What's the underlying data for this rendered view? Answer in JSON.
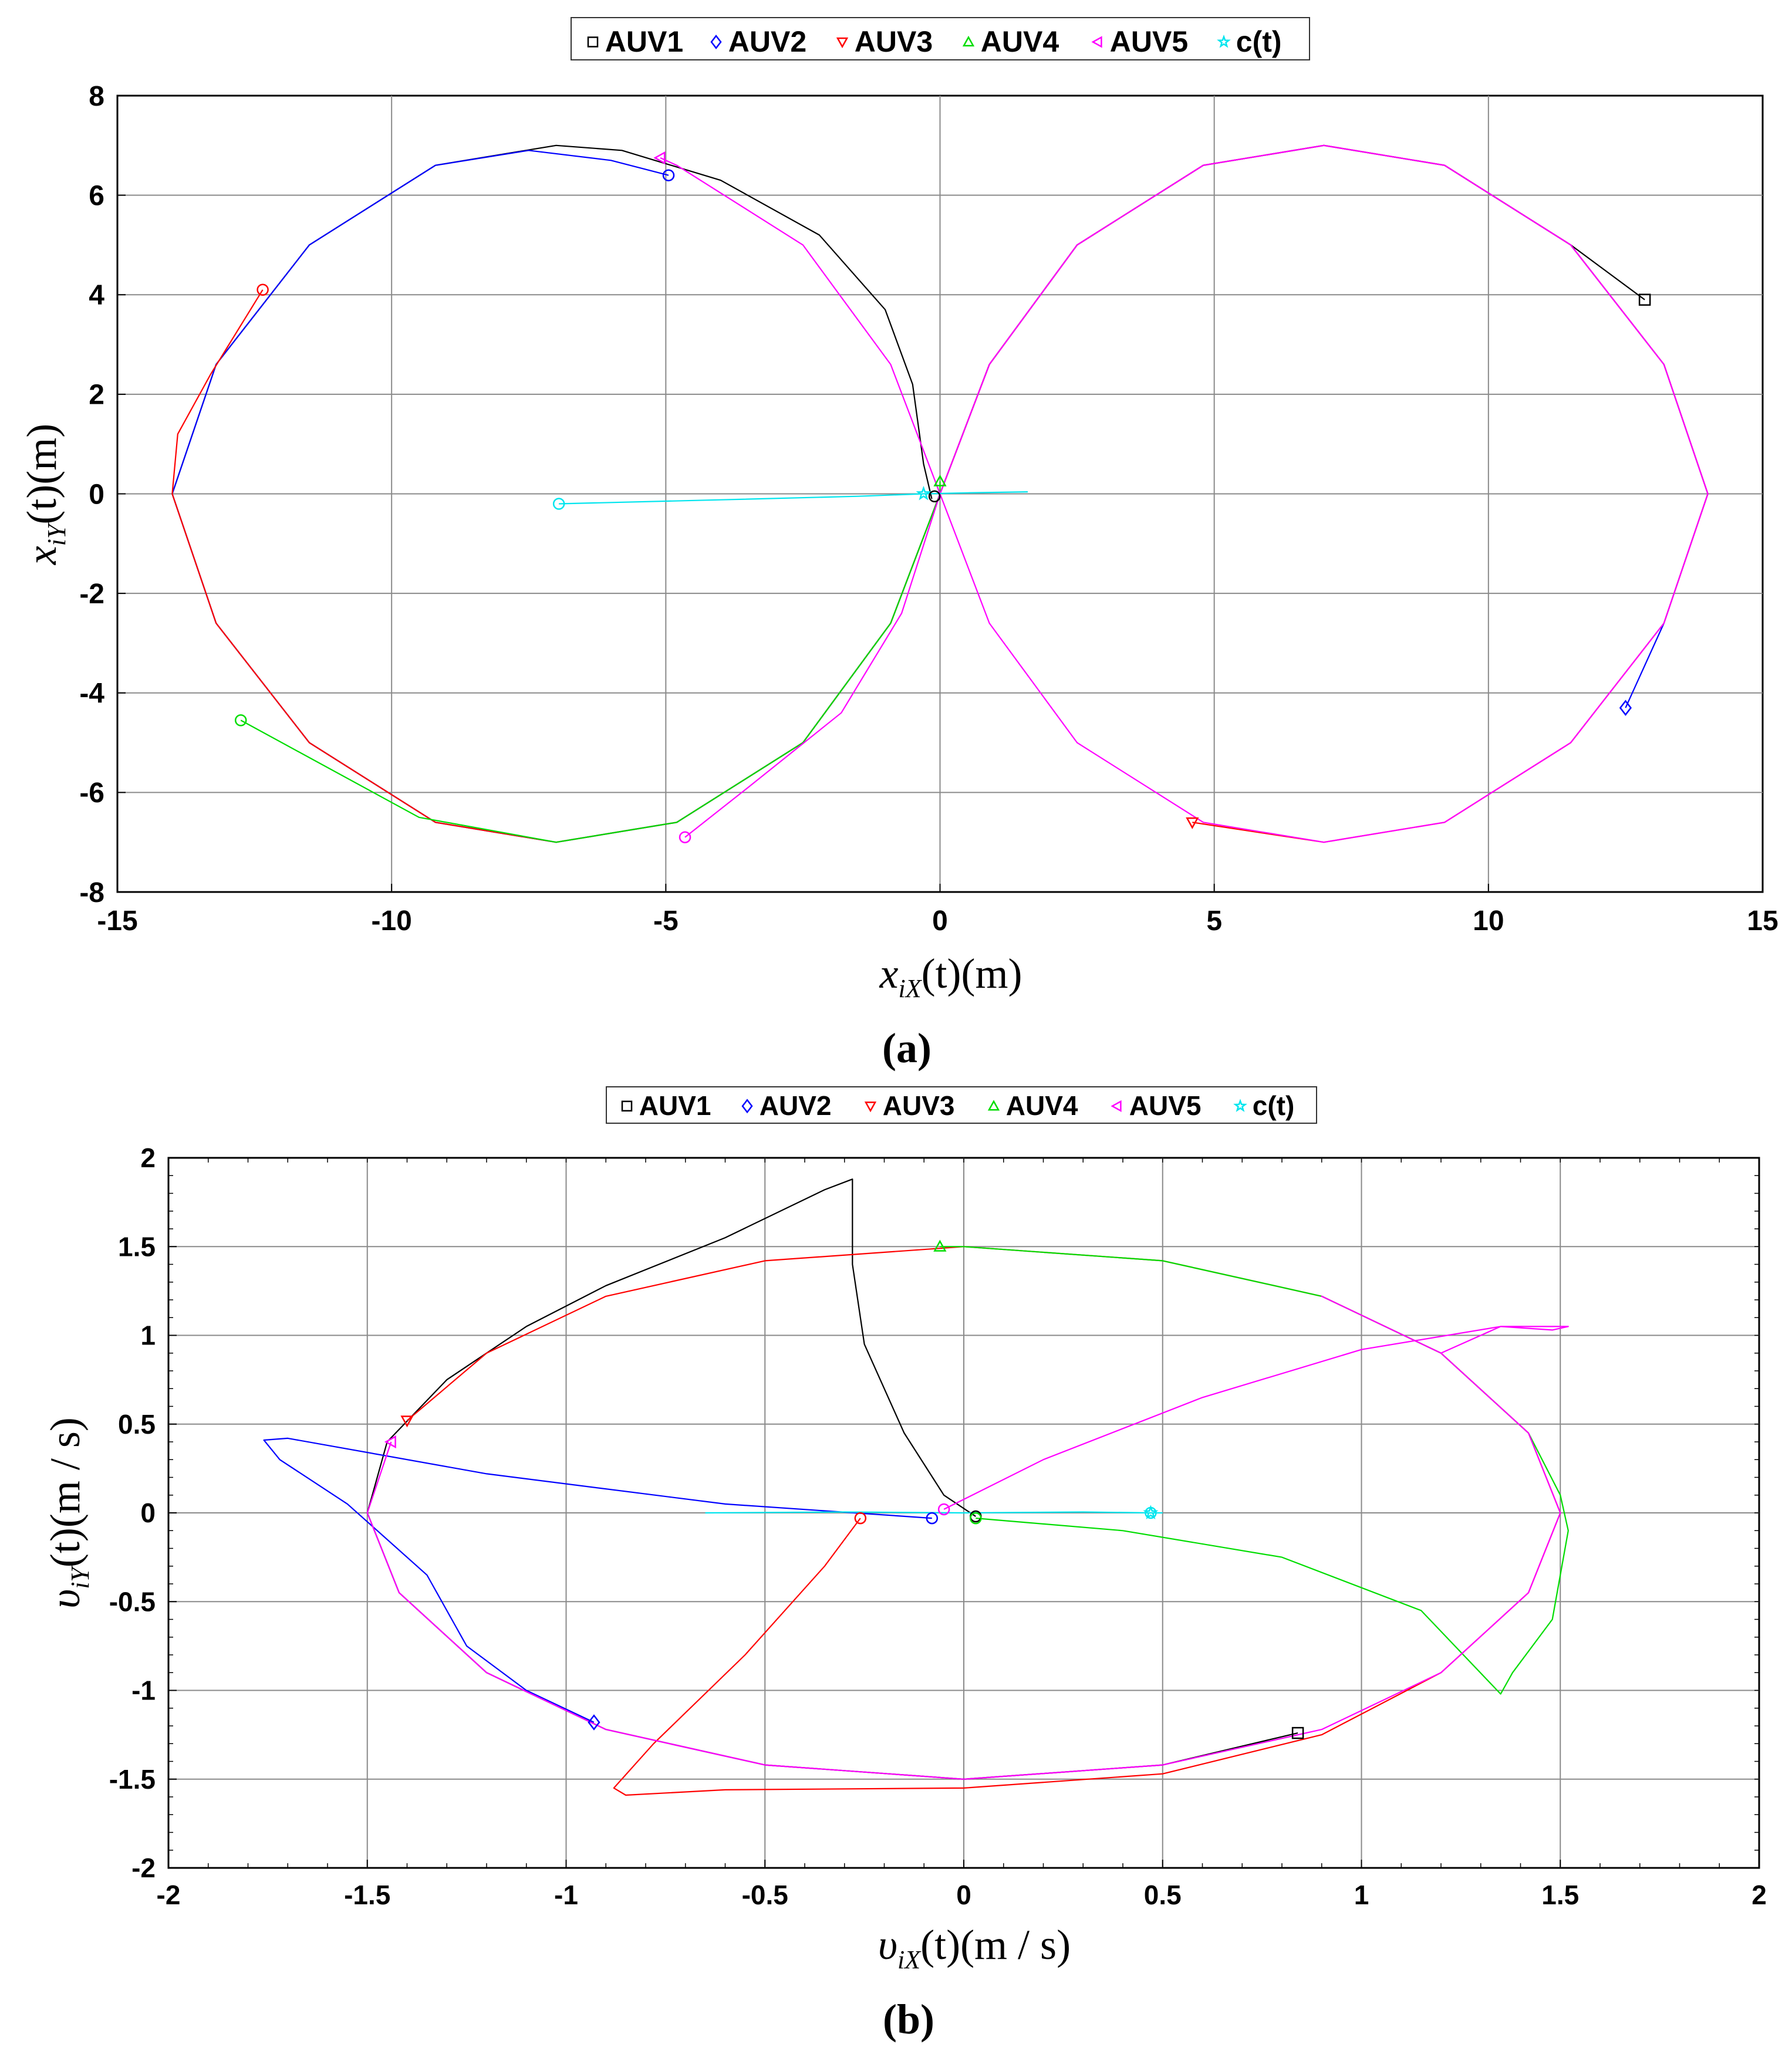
{
  "chart_data": [
    {
      "type": "line",
      "panel_label": "(a)",
      "xlabel": "x_iX(t)(m)",
      "ylabel": "x_iY(t)(m)",
      "xlim": [
        -15,
        15
      ],
      "ylim": [
        -8,
        8
      ],
      "xticks": [
        "-15",
        "-10",
        "-5",
        "0",
        "5",
        "10",
        "15"
      ],
      "yticks": [
        "-8",
        "-6",
        "-4",
        "-2",
        "0",
        "2",
        "4",
        "6",
        "8"
      ],
      "grid": true,
      "legend_position": "top-outside",
      "series": [
        {
          "name": "AUV1",
          "color": "#000000",
          "marker": "square",
          "points": [
            [
              -0.15,
              -0.1
            ],
            [
              -0.3,
              0.6
            ],
            [
              -0.5,
              2.2
            ],
            [
              -1.0,
              3.7
            ],
            [
              -2.2,
              5.2
            ],
            [
              -4.0,
              6.3
            ],
            [
              -5.8,
              6.9
            ],
            [
              -7.0,
              7.0
            ],
            [
              -9.2,
              6.6
            ],
            [
              -11.5,
              5.0
            ],
            [
              -13.2,
              2.6
            ],
            [
              -14.0,
              0
            ],
            [
              -13.2,
              -2.6
            ],
            [
              -11.5,
              -5.0
            ],
            [
              -9.2,
              -6.6
            ],
            [
              -7.0,
              -7.0
            ],
            [
              -4.8,
              -6.6
            ],
            [
              -2.5,
              -5.0
            ],
            [
              -0.9,
              -2.6
            ],
            [
              0,
              0
            ],
            [
              0.9,
              2.6
            ],
            [
              2.5,
              5.0
            ],
            [
              4.8,
              6.6
            ],
            [
              7.0,
              7.0
            ],
            [
              9.2,
              6.6
            ],
            [
              11.5,
              5.0
            ],
            [
              12.85,
              3.9
            ]
          ],
          "end": [
            12.85,
            3.9
          ]
        },
        {
          "name": "AUV2",
          "color": "#0000ff",
          "marker": "diamond",
          "points": [
            [
              -4.95,
              6.4
            ],
            [
              -6.0,
              6.7
            ],
            [
              -7.5,
              6.9
            ],
            [
              -9.2,
              6.6
            ],
            [
              -11.5,
              5.0
            ],
            [
              -13.2,
              2.6
            ],
            [
              -14.0,
              0
            ],
            [
              -13.2,
              -2.6
            ],
            [
              -11.5,
              -5.0
            ],
            [
              -9.2,
              -6.6
            ],
            [
              -7.0,
              -7.0
            ],
            [
              -4.8,
              -6.6
            ],
            [
              -2.5,
              -5.0
            ],
            [
              -0.9,
              -2.6
            ],
            [
              0,
              0
            ],
            [
              0.9,
              2.6
            ],
            [
              2.5,
              5.0
            ],
            [
              4.8,
              6.6
            ],
            [
              7.0,
              7.0
            ],
            [
              9.2,
              6.6
            ],
            [
              11.5,
              5.0
            ],
            [
              13.2,
              2.6
            ],
            [
              14.0,
              0
            ],
            [
              13.2,
              -2.6
            ],
            [
              12.5,
              -4.3
            ]
          ],
          "end": [
            12.5,
            -4.3
          ]
        },
        {
          "name": "AUV3",
          "color": "#ff0000",
          "marker": "triangle-down",
          "points": [
            [
              -12.35,
              4.1
            ],
            [
              -13.3,
              2.4
            ],
            [
              -13.9,
              1.2
            ],
            [
              -14.0,
              0
            ],
            [
              -13.2,
              -2.6
            ],
            [
              -11.5,
              -5.0
            ],
            [
              -9.2,
              -6.6
            ],
            [
              -7.0,
              -7.0
            ],
            [
              -4.8,
              -6.6
            ],
            [
              -2.5,
              -5.0
            ],
            [
              -0.9,
              -2.6
            ],
            [
              0,
              0
            ],
            [
              0.9,
              2.6
            ],
            [
              2.5,
              5.0
            ],
            [
              4.8,
              6.6
            ],
            [
              7.0,
              7.0
            ],
            [
              9.2,
              6.6
            ],
            [
              11.5,
              5.0
            ],
            [
              13.2,
              2.6
            ],
            [
              14.0,
              0
            ],
            [
              13.2,
              -2.6
            ],
            [
              11.5,
              -5.0
            ],
            [
              9.2,
              -6.6
            ],
            [
              7.0,
              -7.0
            ],
            [
              4.6,
              -6.6
            ]
          ],
          "end": [
            4.6,
            -6.6
          ]
        },
        {
          "name": "AUV4",
          "color": "#00dd00",
          "marker": "triangle-up",
          "points": [
            [
              -12.75,
              -4.55
            ],
            [
              -11.5,
              -5.3
            ],
            [
              -9.5,
              -6.5
            ],
            [
              -7.0,
              -7.0
            ],
            [
              -4.8,
              -6.6
            ],
            [
              -2.5,
              -5.0
            ],
            [
              -0.9,
              -2.6
            ],
            [
              0,
              0
            ],
            [
              0,
              0.25
            ]
          ],
          "end": [
            0,
            0.25
          ]
        },
        {
          "name": "AUV5",
          "color": "#ff00ff",
          "marker": "triangle-left",
          "points": [
            [
              -4.65,
              -6.9
            ],
            [
              -3.5,
              -5.9
            ],
            [
              -1.8,
              -4.4
            ],
            [
              -0.7,
              -2.4
            ],
            [
              0,
              0
            ],
            [
              0.9,
              2.6
            ],
            [
              2.5,
              5.0
            ],
            [
              4.8,
              6.6
            ],
            [
              7.0,
              7.0
            ],
            [
              9.2,
              6.6
            ],
            [
              11.5,
              5.0
            ],
            [
              13.2,
              2.6
            ],
            [
              14.0,
              0
            ],
            [
              13.2,
              -2.6
            ],
            [
              11.5,
              -5.0
            ],
            [
              9.2,
              -6.6
            ],
            [
              7.0,
              -7.0
            ],
            [
              4.8,
              -6.6
            ],
            [
              2.5,
              -5.0
            ],
            [
              0.9,
              -2.6
            ],
            [
              0,
              0
            ],
            [
              -0.9,
              2.6
            ],
            [
              -2.5,
              5.0
            ],
            [
              -4.8,
              6.6
            ],
            [
              -5.1,
              6.75
            ]
          ],
          "end": [
            -5.1,
            6.75
          ]
        },
        {
          "name": "c(t)",
          "color": "#00e5ee",
          "marker": "star",
          "points": [
            [
              -6.95,
              -0.2
            ],
            [
              -4.0,
              -0.12
            ],
            [
              -1.5,
              -0.05
            ],
            [
              -0.3,
              0.0
            ],
            [
              0.5,
              0.02
            ],
            [
              1.6,
              0.04
            ]
          ],
          "end": [
            -0.3,
            0.0
          ]
        }
      ],
      "start_markers": [
        [
          -0.1,
          -0.05
        ],
        [
          -4.95,
          6.4
        ],
        [
          -12.35,
          4.1
        ],
        [
          -12.75,
          -4.55
        ],
        [
          -4.65,
          -6.9
        ],
        [
          -6.95,
          -0.2
        ]
      ]
    },
    {
      "type": "line",
      "panel_label": "(b)",
      "xlabel": "υ_iX(t)(m/s)",
      "ylabel": "υ_iY(t)(m/s)",
      "xlim": [
        -2,
        2
      ],
      "ylim": [
        -2,
        2
      ],
      "xticks": [
        "-2",
        "-1.5",
        "-1",
        "-0.5",
        "0",
        "0.5",
        "1",
        "1.5",
        "2"
      ],
      "yticks": [
        "-2",
        "-1.5",
        "-1",
        "-0.5",
        "0",
        "0.5",
        "1",
        "1.5",
        "2"
      ],
      "grid": true,
      "legend_position": "top-outside",
      "series": [
        {
          "name": "AUV1",
          "color": "#000000",
          "marker": "square",
          "points": [
            [
              0.03,
              -0.02
            ],
            [
              -0.05,
              0.1
            ],
            [
              -0.15,
              0.45
            ],
            [
              -0.25,
              0.95
            ],
            [
              -0.28,
              1.4
            ],
            [
              -0.28,
              1.88
            ],
            [
              -0.35,
              1.82
            ],
            [
              -0.6,
              1.55
            ],
            [
              -0.9,
              1.28
            ],
            [
              -1.1,
              1.05
            ],
            [
              -1.3,
              0.75
            ],
            [
              -1.45,
              0.4
            ],
            [
              -1.5,
              0
            ],
            [
              -1.42,
              -0.45
            ],
            [
              -1.2,
              -0.9
            ],
            [
              -0.9,
              -1.22
            ],
            [
              -0.5,
              -1.42
            ],
            [
              0,
              -1.5
            ],
            [
              0.5,
              -1.42
            ],
            [
              0.84,
              -1.24
            ]
          ],
          "end": [
            0.84,
            -1.24
          ]
        },
        {
          "name": "AUV2",
          "color": "#0000ff",
          "marker": "diamond",
          "points": [
            [
              -0.08,
              -0.03
            ],
            [
              -0.6,
              0.05
            ],
            [
              -1.2,
              0.22
            ],
            [
              -1.7,
              0.42
            ],
            [
              -1.76,
              0.41
            ],
            [
              -1.72,
              0.3
            ],
            [
              -1.55,
              0.05
            ],
            [
              -1.35,
              -0.35
            ],
            [
              -1.25,
              -0.75
            ],
            [
              -1.1,
              -1.0
            ],
            [
              -0.93,
              -1.18
            ]
          ],
          "end": [
            -0.93,
            -1.18
          ]
        },
        {
          "name": "AUV3",
          "color": "#ff0000",
          "marker": "triangle-down",
          "points": [
            [
              -0.26,
              -0.03
            ],
            [
              -0.35,
              -0.3
            ],
            [
              -0.55,
              -0.8
            ],
            [
              -0.78,
              -1.3
            ],
            [
              -0.88,
              -1.55
            ],
            [
              -0.85,
              -1.59
            ],
            [
              -0.6,
              -1.56
            ],
            [
              0,
              -1.55
            ],
            [
              0.5,
              -1.47
            ],
            [
              0.9,
              -1.25
            ],
            [
              1.2,
              -0.9
            ],
            [
              1.42,
              -0.45
            ],
            [
              1.5,
              0
            ],
            [
              1.42,
              0.45
            ],
            [
              1.2,
              0.9
            ],
            [
              0.9,
              1.22
            ],
            [
              0.5,
              1.42
            ],
            [
              0,
              1.5
            ],
            [
              -0.5,
              1.42
            ],
            [
              -0.9,
              1.22
            ],
            [
              -1.2,
              0.9
            ],
            [
              -1.4,
              0.52
            ]
          ],
          "end": [
            -1.4,
            0.52
          ]
        },
        {
          "name": "AUV4",
          "color": "#00dd00",
          "marker": "triangle-up",
          "points": [
            [
              0.03,
              -0.03
            ],
            [
              0.4,
              -0.1
            ],
            [
              0.8,
              -0.25
            ],
            [
              1.15,
              -0.55
            ],
            [
              1.35,
              -1.02
            ],
            [
              1.38,
              -0.9
            ],
            [
              1.48,
              -0.6
            ],
            [
              1.52,
              -0.1
            ],
            [
              1.5,
              0.1
            ],
            [
              1.42,
              0.45
            ],
            [
              1.2,
              0.9
            ],
            [
              0.9,
              1.22
            ],
            [
              0.5,
              1.42
            ],
            [
              0,
              1.5
            ],
            [
              -0.06,
              1.5
            ]
          ],
          "end": [
            -0.06,
            1.5
          ]
        },
        {
          "name": "AUV5",
          "color": "#ff00ff",
          "marker": "triangle-left",
          "points": [
            [
              -0.05,
              0.02
            ],
            [
              0.2,
              0.3
            ],
            [
              0.6,
              0.65
            ],
            [
              1.0,
              0.92
            ],
            [
              1.35,
              1.05
            ],
            [
              1.52,
              1.05
            ],
            [
              1.48,
              1.03
            ],
            [
              1.35,
              1.05
            ],
            [
              1.2,
              0.9
            ],
            [
              0.9,
              1.22
            ],
            [
              1.2,
              0.9
            ],
            [
              1.42,
              0.45
            ],
            [
              1.5,
              0
            ],
            [
              1.42,
              -0.45
            ],
            [
              1.2,
              -0.9
            ],
            [
              0.9,
              -1.22
            ],
            [
              0.5,
              -1.42
            ],
            [
              0,
              -1.5
            ],
            [
              -0.5,
              -1.42
            ],
            [
              -0.9,
              -1.22
            ],
            [
              -1.2,
              -0.9
            ],
            [
              -1.42,
              -0.45
            ],
            [
              -1.5,
              0
            ],
            [
              -1.44,
              0.4
            ]
          ],
          "end": [
            -1.44,
            0.4
          ]
        },
        {
          "name": "c(t)",
          "color": "#00e5ee",
          "marker": "star",
          "points": [
            [
              -0.65,
              0
            ],
            [
              -0.3,
              0.005
            ],
            [
              0,
              0.0
            ],
            [
              0.3,
              0.005
            ],
            [
              0.47,
              0
            ],
            [
              0.5,
              0
            ]
          ],
          "end": [
            0.47,
            0
          ]
        }
      ],
      "start_markers": [
        [
          0.03,
          -0.02
        ],
        [
          -0.08,
          -0.03
        ],
        [
          -0.26,
          -0.03
        ],
        [
          0.03,
          -0.03
        ],
        [
          -0.05,
          0.02
        ],
        [
          0.47,
          0
        ]
      ]
    }
  ],
  "panels": {
    "a": {
      "legend": [
        "AUV1",
        "AUV2",
        "AUV3",
        "AUV4",
        "AUV5",
        "c(t)"
      ],
      "xlabel_main": "x",
      "xlabel_sub": "iX",
      "xlabel_rest": "(t)(m)",
      "ylabel_main": "x",
      "ylabel_sub": "iY",
      "ylabel_rest": "(t)(m)",
      "label": "(a)"
    },
    "b": {
      "legend": [
        "AUV1",
        "AUV2",
        "AUV3",
        "AUV4",
        "AUV5",
        "c(t)"
      ],
      "xlabel_main": "υ",
      "xlabel_sub": "iX",
      "xlabel_rest": "(t)(m / s)",
      "ylabel_main": "υ",
      "ylabel_sub": "iY",
      "ylabel_rest": "(t)(m / s)",
      "label": "(b)"
    }
  }
}
